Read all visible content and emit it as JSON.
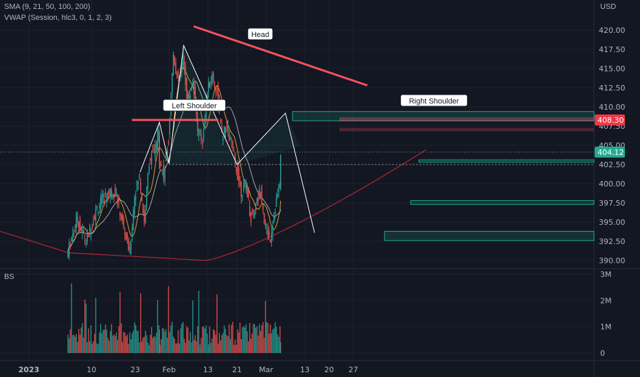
{
  "legend": {
    "sma": "SMA (9, 21, 50, 100, 200)",
    "vwap": "VWAP (Session, hlc3, 0, 1, 2, 3)",
    "volume": "BS"
  },
  "currency": "USD",
  "colors": {
    "background": "#131722",
    "up": "#26a69a",
    "down": "#ef5350",
    "trendline": "#f7525f",
    "pattern_line": "#ffffff",
    "zone": "#22ab94",
    "sma_long": "#b22833",
    "sma_short": "#f0b03d"
  },
  "chart_data": [
    {
      "type": "candlestick",
      "title": "",
      "y_axis": {
        "ticks": [
          "420.00",
          "417.50",
          "415.00",
          "412.50",
          "410.00",
          "407.50",
          "405.00",
          "402.50",
          "400.00",
          "397.50",
          "395.00",
          "392.50",
          "390.00"
        ],
        "ylim": [
          389.5,
          421.5
        ]
      },
      "x_axis": {
        "ticks": [
          "2023",
          "10",
          "23",
          "Feb",
          "13",
          "21",
          "Mar",
          "13",
          "20",
          "27"
        ]
      },
      "price_badges": [
        {
          "value": "408.30",
          "color": "#f23645"
        },
        {
          "value": "404.12",
          "color": "#22ab94"
        }
      ],
      "annotations": [
        "Left Shoulder",
        "Head",
        "Right Shoulder"
      ],
      "key_points": [
        {
          "label": "Left Shoulder",
          "date": "Jan 28",
          "price": 408.0
        },
        {
          "label": "Head",
          "date": "Feb 6",
          "price": 418.0
        },
        {
          "label": "Right Shoulder",
          "date": "Mar 5",
          "price": 409.0
        },
        {
          "label": "Neckline",
          "price": 402.5
        },
        {
          "label": "Target",
          "date": "Mar 15",
          "price": 393.6
        }
      ],
      "zones": [
        {
          "from": 408.2,
          "to": 409.4
        },
        {
          "from": 402.8,
          "to": 403.1
        },
        {
          "from": 397.3,
          "to": 397.8
        },
        {
          "from": 392.6,
          "to": 393.8
        }
      ],
      "close_path": [
        [
          "Jan 3",
          390.5
        ],
        [
          "Jan 5",
          395.5
        ],
        [
          "Jan 9",
          392.5
        ],
        [
          "Jan 11",
          396.5
        ],
        [
          "Jan 13",
          398.5
        ],
        [
          "Jan 17",
          399.0
        ],
        [
          "Jan 19",
          393.5
        ],
        [
          "Jan 20",
          391.0
        ],
        [
          "Jan 23",
          398.5
        ],
        [
          "Jan 24",
          401.0
        ],
        [
          "Jan 25",
          395.0
        ],
        [
          "Jan 26",
          403.0
        ],
        [
          "Jan 27",
          404.0
        ],
        [
          "Jan 28",
          406.8
        ],
        [
          "Jan 30",
          403.5
        ],
        [
          "Jan 31",
          401.0
        ],
        [
          "Feb 1",
          406.0
        ],
        [
          "Feb 2",
          417.0
        ],
        [
          "Feb 3",
          413.0
        ],
        [
          "Feb 6",
          416.5
        ],
        [
          "Feb 7",
          410.0
        ],
        [
          "Feb 8",
          413.5
        ],
        [
          "Feb 9",
          407.0
        ],
        [
          "Feb 10",
          405.5
        ],
        [
          "Feb 13",
          412.0
        ],
        [
          "Feb 14",
          414.0
        ],
        [
          "Feb 15",
          412.0
        ],
        [
          "Feb 16",
          406.0
        ],
        [
          "Feb 17",
          407.5
        ],
        [
          "Feb 20",
          405.0
        ],
        [
          "Feb 21",
          402.0
        ],
        [
          "Feb 22",
          399.0
        ],
        [
          "Feb 23",
          400.0
        ],
        [
          "Feb 24",
          395.5
        ],
        [
          "Feb 27",
          397.0
        ],
        [
          "Feb 28",
          399.5
        ],
        [
          "Mar 1",
          394.0
        ],
        [
          "Mar 2",
          393.0
        ],
        [
          "Mar 3",
          397.0
        ],
        [
          "Mar 4",
          400.0
        ],
        [
          "Mar 5",
          403.5
        ]
      ]
    },
    {
      "type": "bar",
      "title": "",
      "y_axis": {
        "ticks": [
          "3M",
          "2M",
          "1M",
          "0"
        ],
        "ylim": [
          0,
          3000000
        ]
      },
      "note": "volume histogram below price pane"
    }
  ]
}
